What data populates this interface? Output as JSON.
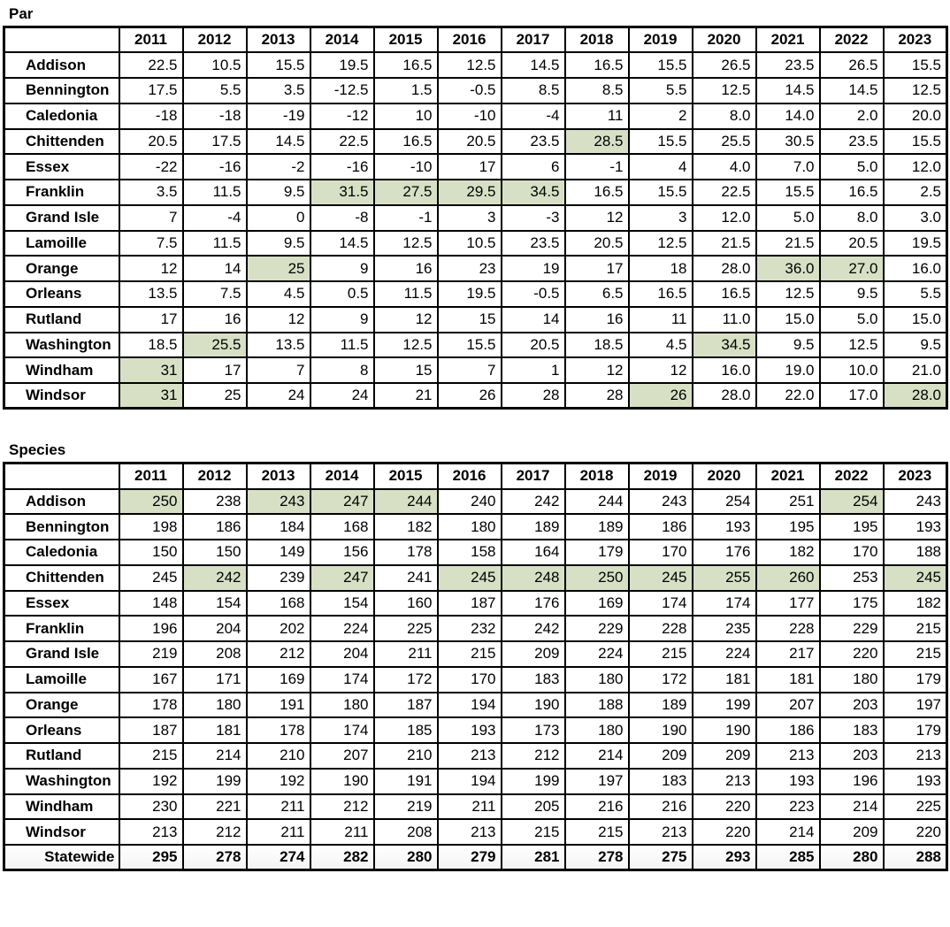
{
  "colors": {
    "highlight": "#d7e0c5",
    "border": "#000000",
    "text": "#000000",
    "background": "#ffffff"
  },
  "chart_data": [
    {
      "type": "table",
      "title": "Par",
      "years": [
        "2011",
        "2012",
        "2013",
        "2014",
        "2015",
        "2016",
        "2017",
        "2018",
        "2019",
        "2020",
        "2021",
        "2022",
        "2023"
      ],
      "rows": [
        {
          "label": "Addison",
          "values": [
            "22.5",
            "10.5",
            "15.5",
            "19.5",
            "16.5",
            "12.5",
            "14.5",
            "16.5",
            "15.5",
            "26.5",
            "23.5",
            "26.5",
            "15.5"
          ],
          "highlights": []
        },
        {
          "label": "Bennington",
          "values": [
            "17.5",
            "5.5",
            "3.5",
            "-12.5",
            "1.5",
            "-0.5",
            "8.5",
            "8.5",
            "5.5",
            "12.5",
            "14.5",
            "14.5",
            "12.5"
          ],
          "highlights": []
        },
        {
          "label": "Caledonia",
          "values": [
            "-18",
            "-18",
            "-19",
            "-12",
            "10",
            "-10",
            "-4",
            "11",
            "2",
            "8.0",
            "14.0",
            "2.0",
            "20.0"
          ],
          "highlights": []
        },
        {
          "label": "Chittenden",
          "values": [
            "20.5",
            "17.5",
            "14.5",
            "22.5",
            "16.5",
            "20.5",
            "23.5",
            "28.5",
            "15.5",
            "25.5",
            "30.5",
            "23.5",
            "15.5"
          ],
          "highlights": [
            7
          ]
        },
        {
          "label": "Essex",
          "values": [
            "-22",
            "-16",
            "-2",
            "-16",
            "-10",
            "17",
            "6",
            "-1",
            "4",
            "4.0",
            "7.0",
            "5.0",
            "12.0"
          ],
          "highlights": []
        },
        {
          "label": "Franklin",
          "values": [
            "3.5",
            "11.5",
            "9.5",
            "31.5",
            "27.5",
            "29.5",
            "34.5",
            "16.5",
            "15.5",
            "22.5",
            "15.5",
            "16.5",
            "2.5"
          ],
          "highlights": [
            3,
            4,
            5,
            6
          ]
        },
        {
          "label": "Grand Isle",
          "values": [
            "7",
            "-4",
            "0",
            "-8",
            "-1",
            "3",
            "-3",
            "12",
            "3",
            "12.0",
            "5.0",
            "8.0",
            "3.0"
          ],
          "highlights": []
        },
        {
          "label": "Lamoille",
          "values": [
            "7.5",
            "11.5",
            "9.5",
            "14.5",
            "12.5",
            "10.5",
            "23.5",
            "20.5",
            "12.5",
            "21.5",
            "21.5",
            "20.5",
            "19.5"
          ],
          "highlights": []
        },
        {
          "label": "Orange",
          "values": [
            "12",
            "14",
            "25",
            "9",
            "16",
            "23",
            "19",
            "17",
            "18",
            "28.0",
            "36.0",
            "27.0",
            "16.0"
          ],
          "highlights": [
            2,
            10,
            11
          ]
        },
        {
          "label": "Orleans",
          "values": [
            "13.5",
            "7.5",
            "4.5",
            "0.5",
            "11.5",
            "19.5",
            "-0.5",
            "6.5",
            "16.5",
            "16.5",
            "12.5",
            "9.5",
            "5.5"
          ],
          "highlights": []
        },
        {
          "label": "Rutland",
          "values": [
            "17",
            "16",
            "12",
            "9",
            "12",
            "15",
            "14",
            "16",
            "11",
            "11.0",
            "15.0",
            "5.0",
            "15.0"
          ],
          "highlights": []
        },
        {
          "label": "Washington",
          "values": [
            "18.5",
            "25.5",
            "13.5",
            "11.5",
            "12.5",
            "15.5",
            "20.5",
            "18.5",
            "4.5",
            "34.5",
            "9.5",
            "12.5",
            "9.5"
          ],
          "highlights": [
            1,
            9
          ]
        },
        {
          "label": "Windham",
          "values": [
            "31",
            "17",
            "7",
            "8",
            "15",
            "7",
            "1",
            "12",
            "12",
            "16.0",
            "19.0",
            "10.0",
            "21.0"
          ],
          "highlights": [
            0
          ]
        },
        {
          "label": "Windsor",
          "values": [
            "31",
            "25",
            "24",
            "24",
            "21",
            "26",
            "28",
            "28",
            "26",
            "28.0",
            "22.0",
            "17.0",
            "28.0"
          ],
          "highlights": [
            0,
            8,
            12
          ]
        }
      ]
    },
    {
      "type": "table",
      "title": "Species",
      "years": [
        "2011",
        "2012",
        "2013",
        "2014",
        "2015",
        "2016",
        "2017",
        "2018",
        "2019",
        "2020",
        "2021",
        "2022",
        "2023"
      ],
      "rows": [
        {
          "label": "Addison",
          "values": [
            "250",
            "238",
            "243",
            "247",
            "244",
            "240",
            "242",
            "244",
            "243",
            "254",
            "251",
            "254",
            "243"
          ],
          "highlights": [
            0,
            2,
            3,
            4,
            11
          ]
        },
        {
          "label": "Bennington",
          "values": [
            "198",
            "186",
            "184",
            "168",
            "182",
            "180",
            "189",
            "189",
            "186",
            "193",
            "195",
            "195",
            "193"
          ],
          "highlights": []
        },
        {
          "label": "Caledonia",
          "values": [
            "150",
            "150",
            "149",
            "156",
            "178",
            "158",
            "164",
            "179",
            "170",
            "176",
            "182",
            "170",
            "188"
          ],
          "highlights": []
        },
        {
          "label": "Chittenden",
          "values": [
            "245",
            "242",
            "239",
            "247",
            "241",
            "245",
            "248",
            "250",
            "245",
            "255",
            "260",
            "253",
            "245"
          ],
          "highlights": [
            1,
            3,
            5,
            6,
            7,
            8,
            9,
            10,
            12
          ]
        },
        {
          "label": "Essex",
          "values": [
            "148",
            "154",
            "168",
            "154",
            "160",
            "187",
            "176",
            "169",
            "174",
            "174",
            "177",
            "175",
            "182"
          ],
          "highlights": []
        },
        {
          "label": "Franklin",
          "values": [
            "196",
            "204",
            "202",
            "224",
            "225",
            "232",
            "242",
            "229",
            "228",
            "235",
            "228",
            "229",
            "215"
          ],
          "highlights": []
        },
        {
          "label": "Grand Isle",
          "values": [
            "219",
            "208",
            "212",
            "204",
            "211",
            "215",
            "209",
            "224",
            "215",
            "224",
            "217",
            "220",
            "215"
          ],
          "highlights": []
        },
        {
          "label": "Lamoille",
          "values": [
            "167",
            "171",
            "169",
            "174",
            "172",
            "170",
            "183",
            "180",
            "172",
            "181",
            "181",
            "180",
            "179"
          ],
          "highlights": []
        },
        {
          "label": "Orange",
          "values": [
            "178",
            "180",
            "191",
            "180",
            "187",
            "194",
            "190",
            "188",
            "189",
            "199",
            "207",
            "203",
            "197"
          ],
          "highlights": []
        },
        {
          "label": "Orleans",
          "values": [
            "187",
            "181",
            "178",
            "174",
            "185",
            "193",
            "173",
            "180",
            "190",
            "190",
            "186",
            "183",
            "179"
          ],
          "highlights": []
        },
        {
          "label": "Rutland",
          "values": [
            "215",
            "214",
            "210",
            "207",
            "210",
            "213",
            "212",
            "214",
            "209",
            "209",
            "213",
            "203",
            "213"
          ],
          "highlights": []
        },
        {
          "label": "Washington",
          "values": [
            "192",
            "199",
            "192",
            "190",
            "191",
            "194",
            "199",
            "197",
            "183",
            "213",
            "193",
            "196",
            "193"
          ],
          "highlights": []
        },
        {
          "label": "Windham",
          "values": [
            "230",
            "221",
            "211",
            "212",
            "219",
            "211",
            "205",
            "216",
            "216",
            "220",
            "223",
            "214",
            "225"
          ],
          "highlights": []
        },
        {
          "label": "Windsor",
          "values": [
            "213",
            "212",
            "211",
            "211",
            "208",
            "213",
            "215",
            "215",
            "213",
            "220",
            "214",
            "209",
            "220"
          ],
          "highlights": []
        },
        {
          "label": "Statewide",
          "values": [
            "295",
            "278",
            "274",
            "282",
            "280",
            "279",
            "281",
            "278",
            "275",
            "293",
            "285",
            "280",
            "288"
          ],
          "highlights": [],
          "bold": true
        }
      ]
    }
  ]
}
